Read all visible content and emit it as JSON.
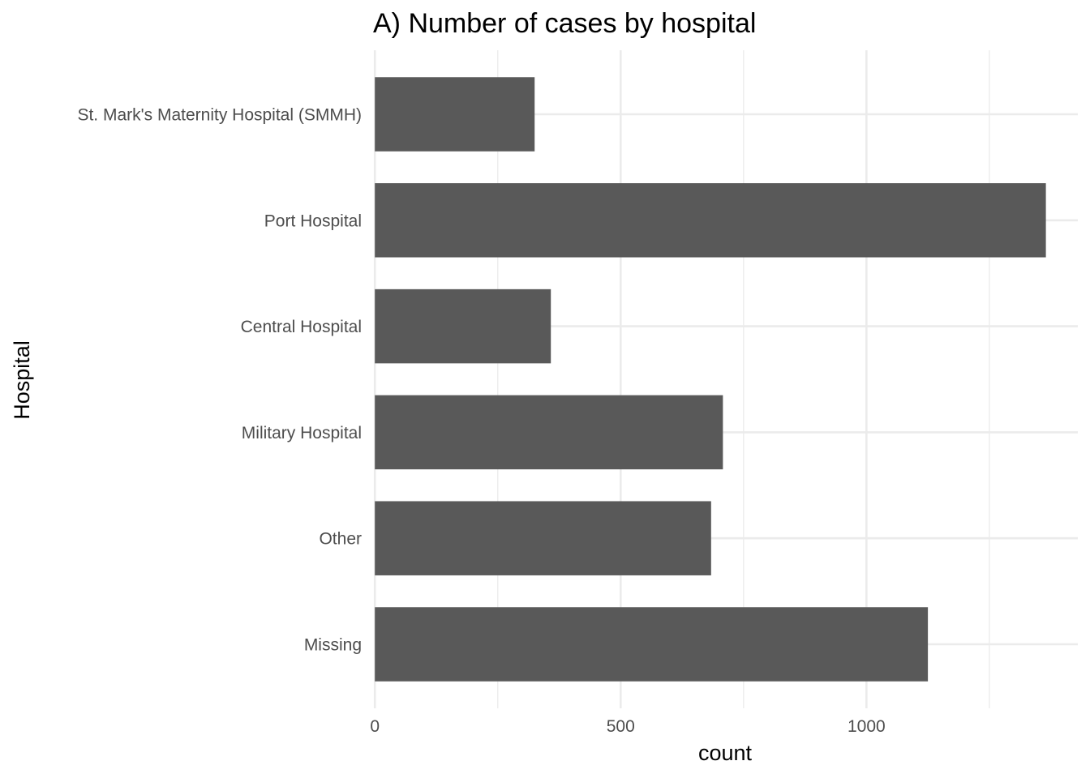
{
  "chart_data": {
    "type": "bar",
    "orientation": "horizontal",
    "title": "A) Number of cases by hospital",
    "xlabel": "count",
    "ylabel": "Hospital",
    "categories": [
      "Missing",
      "Other",
      "Military Hospital",
      "Central Hospital",
      "Port Hospital",
      "St. Mark's Maternity Hospital (SMMH)"
    ],
    "values": [
      1125,
      684,
      708,
      358,
      1365,
      325
    ],
    "xlim": [
      -2,
      1430
    ],
    "x_ticks": [
      0,
      500,
      1000
    ],
    "x_tick_labels": [
      "0",
      "500",
      "1000"
    ],
    "x_minor_ticks": [
      250,
      750,
      1250
    ],
    "grid": true,
    "bar_color": "#595959",
    "grid_color": "#ebebeb",
    "background_color": "#ffffff",
    "legend": "none"
  }
}
